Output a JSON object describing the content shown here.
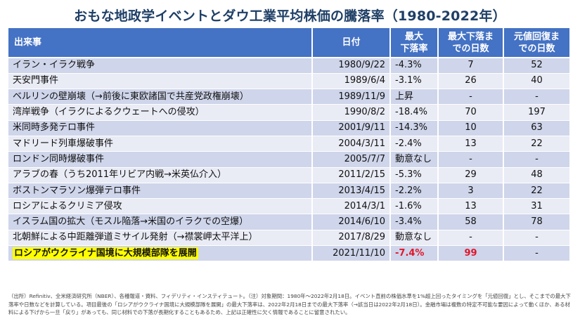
{
  "title": "おもな地政学イベントとダウ工業平均株価の騰落率（1980-2022年）",
  "table": {
    "headers": {
      "event": "出来事",
      "date": "日付",
      "max_drop_line1": "最大",
      "max_drop_line2": "下落率",
      "days_to_bottom_line1": "最大下落ま",
      "days_to_bottom_line2": "での日数",
      "days_to_recover_line1": "元値回復ま",
      "days_to_recover_line2": "での日数"
    },
    "rows": [
      {
        "event": "イラン・イラク戦争",
        "date": "1980/9/22",
        "max_drop": "-4.3%",
        "days_to_bottom": "7",
        "days_to_recover": "52"
      },
      {
        "event": "天安門事件",
        "date": "1989/6/4",
        "max_drop": "-3.1%",
        "days_to_bottom": "26",
        "days_to_recover": "40"
      },
      {
        "event": "ベルリンの壁崩壊（→前後に東欧諸国で共産党政権崩壊）",
        "date": "1989/11/9",
        "max_drop": "上昇",
        "days_to_bottom": "-",
        "days_to_recover": "-"
      },
      {
        "event": "湾岸戦争（イラクによるクウェートへの侵攻）",
        "date": "1990/8/2",
        "max_drop": "-18.4%",
        "days_to_bottom": "70",
        "days_to_recover": "197"
      },
      {
        "event": "米同時多発テロ事件",
        "date": "2001/9/11",
        "max_drop": "-14.3%",
        "days_to_bottom": "10",
        "days_to_recover": "63"
      },
      {
        "event": "マドリード列車爆破事件",
        "date": "2004/3/11",
        "max_drop": "-2.4%",
        "days_to_bottom": "13",
        "days_to_recover": "22"
      },
      {
        "event": "ロンドン同時爆破事件",
        "date": "2005/7/7",
        "max_drop": "動意なし",
        "days_to_bottom": "-",
        "days_to_recover": "-"
      },
      {
        "event": "アラブの春（うち2011年リビア内戦→米英仏介入）",
        "date": "2011/2/15",
        "max_drop": "-5.3%",
        "days_to_bottom": "29",
        "days_to_recover": "48"
      },
      {
        "event": "ボストンマラソン爆弾テロ事件",
        "date": "2013/4/15",
        "max_drop": "-2.2%",
        "days_to_bottom": "3",
        "days_to_recover": "22"
      },
      {
        "event": "ロシアによるクリミア侵攻",
        "date": "2014/3/1",
        "max_drop": "-1.6%",
        "days_to_bottom": "13",
        "days_to_recover": "31"
      },
      {
        "event": "イスラム国の拡大（モスル陥落→米国のイラクでの空爆）",
        "date": "2014/6/10",
        "max_drop": "-3.4%",
        "days_to_bottom": "58",
        "days_to_recover": "78"
      },
      {
        "event": "北朝鮮による中距離弾道ミサイル発射（→襟裳岬太平洋上）",
        "date": "2017/8/29",
        "max_drop": "動意なし",
        "days_to_bottom": "-",
        "days_to_recover": "-"
      },
      {
        "event": "ロシアがウクライナ国境に大規模部隊を展開",
        "date": "2021/11/10",
        "max_drop": "-7.4%",
        "days_to_bottom": "99",
        "days_to_recover": "-"
      }
    ]
  },
  "footnote": "（出所）Refinitiv、全米経済研究所（NBER）、各種報道・資料、フィデリティ・インスティテュート。（注）対象期間：1980年〜2022年2月18日。イベント直前の株価水準を1%超上回ったタイミングを「元値回復」とし、そこまでの最大下落率や日数などを計算している。項目最後の「ロシアがウクライナ国境に大規模部隊を展開」の最大下落率は、2022年2月18日までの最大下落率（→該当日は2022年2月18日）。金融市場は複数の特定不可能な要因によって動くほか、ある材料による下げから一旦「戻り」があっても、同じ材料での下落が長期化することもあるため、上記は正確性に欠く情報であることに留意されたい。",
  "colors": {
    "header_bg": "#4472c4",
    "row_dark": "#cfd5ea",
    "row_light": "#e9ebf5",
    "highlight": "#ffff00",
    "alert_red": "#e0162b",
    "title": "#1f3f66"
  }
}
